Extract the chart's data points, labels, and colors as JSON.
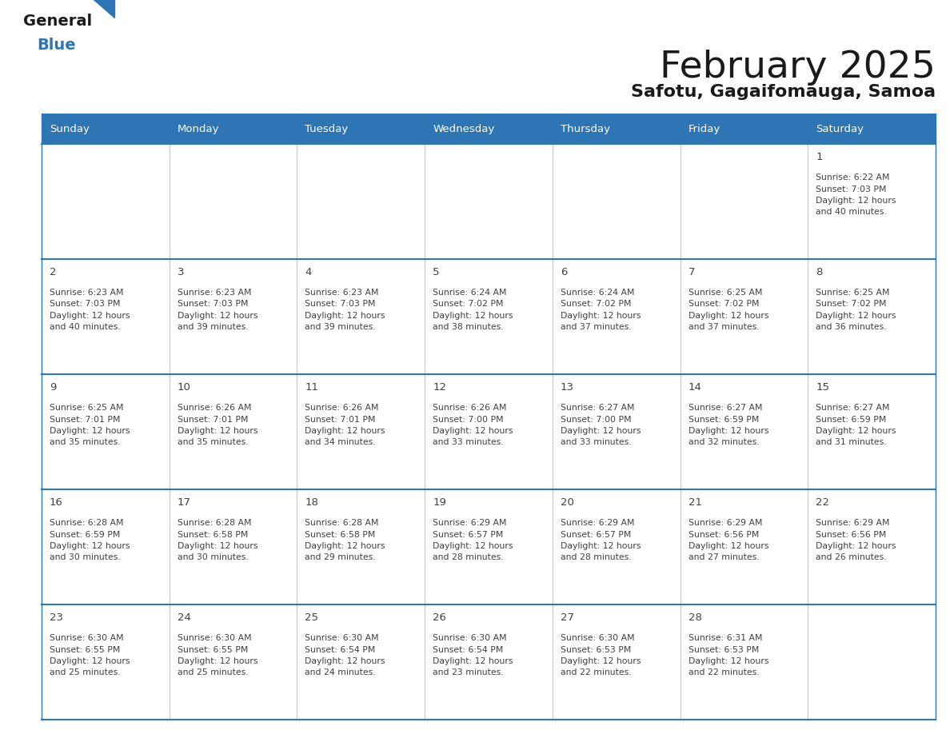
{
  "title": "February 2025",
  "subtitle": "Safotu, Gagaifomauga, Samoa",
  "header_bg": "#2E75B6",
  "header_text": "#FFFFFF",
  "grid_line_color": "#2E75B6",
  "text_color": "#404040",
  "day_headers": [
    "Sunday",
    "Monday",
    "Tuesday",
    "Wednesday",
    "Thursday",
    "Friday",
    "Saturday"
  ],
  "calendar_data": [
    [
      null,
      null,
      null,
      null,
      null,
      null,
      {
        "day": "1",
        "sunrise": "6:22 AM",
        "sunset": "7:03 PM",
        "daylight1": "12 hours",
        "daylight2": "and 40 minutes."
      }
    ],
    [
      {
        "day": "2",
        "sunrise": "6:23 AM",
        "sunset": "7:03 PM",
        "daylight1": "12 hours",
        "daylight2": "and 40 minutes."
      },
      {
        "day": "3",
        "sunrise": "6:23 AM",
        "sunset": "7:03 PM",
        "daylight1": "12 hours",
        "daylight2": "and 39 minutes."
      },
      {
        "day": "4",
        "sunrise": "6:23 AM",
        "sunset": "7:03 PM",
        "daylight1": "12 hours",
        "daylight2": "and 39 minutes."
      },
      {
        "day": "5",
        "sunrise": "6:24 AM",
        "sunset": "7:02 PM",
        "daylight1": "12 hours",
        "daylight2": "and 38 minutes."
      },
      {
        "day": "6",
        "sunrise": "6:24 AM",
        "sunset": "7:02 PM",
        "daylight1": "12 hours",
        "daylight2": "and 37 minutes."
      },
      {
        "day": "7",
        "sunrise": "6:25 AM",
        "sunset": "7:02 PM",
        "daylight1": "12 hours",
        "daylight2": "and 37 minutes."
      },
      {
        "day": "8",
        "sunrise": "6:25 AM",
        "sunset": "7:02 PM",
        "daylight1": "12 hours",
        "daylight2": "and 36 minutes."
      }
    ],
    [
      {
        "day": "9",
        "sunrise": "6:25 AM",
        "sunset": "7:01 PM",
        "daylight1": "12 hours",
        "daylight2": "and 35 minutes."
      },
      {
        "day": "10",
        "sunrise": "6:26 AM",
        "sunset": "7:01 PM",
        "daylight1": "12 hours",
        "daylight2": "and 35 minutes."
      },
      {
        "day": "11",
        "sunrise": "6:26 AM",
        "sunset": "7:01 PM",
        "daylight1": "12 hours",
        "daylight2": "and 34 minutes."
      },
      {
        "day": "12",
        "sunrise": "6:26 AM",
        "sunset": "7:00 PM",
        "daylight1": "12 hours",
        "daylight2": "and 33 minutes."
      },
      {
        "day": "13",
        "sunrise": "6:27 AM",
        "sunset": "7:00 PM",
        "daylight1": "12 hours",
        "daylight2": "and 33 minutes."
      },
      {
        "day": "14",
        "sunrise": "6:27 AM",
        "sunset": "6:59 PM",
        "daylight1": "12 hours",
        "daylight2": "and 32 minutes."
      },
      {
        "day": "15",
        "sunrise": "6:27 AM",
        "sunset": "6:59 PM",
        "daylight1": "12 hours",
        "daylight2": "and 31 minutes."
      }
    ],
    [
      {
        "day": "16",
        "sunrise": "6:28 AM",
        "sunset": "6:59 PM",
        "daylight1": "12 hours",
        "daylight2": "and 30 minutes."
      },
      {
        "day": "17",
        "sunrise": "6:28 AM",
        "sunset": "6:58 PM",
        "daylight1": "12 hours",
        "daylight2": "and 30 minutes."
      },
      {
        "day": "18",
        "sunrise": "6:28 AM",
        "sunset": "6:58 PM",
        "daylight1": "12 hours",
        "daylight2": "and 29 minutes."
      },
      {
        "day": "19",
        "sunrise": "6:29 AM",
        "sunset": "6:57 PM",
        "daylight1": "12 hours",
        "daylight2": "and 28 minutes."
      },
      {
        "day": "20",
        "sunrise": "6:29 AM",
        "sunset": "6:57 PM",
        "daylight1": "12 hours",
        "daylight2": "and 28 minutes."
      },
      {
        "day": "21",
        "sunrise": "6:29 AM",
        "sunset": "6:56 PM",
        "daylight1": "12 hours",
        "daylight2": "and 27 minutes."
      },
      {
        "day": "22",
        "sunrise": "6:29 AM",
        "sunset": "6:56 PM",
        "daylight1": "12 hours",
        "daylight2": "and 26 minutes."
      }
    ],
    [
      {
        "day": "23",
        "sunrise": "6:30 AM",
        "sunset": "6:55 PM",
        "daylight1": "12 hours",
        "daylight2": "and 25 minutes."
      },
      {
        "day": "24",
        "sunrise": "6:30 AM",
        "sunset": "6:55 PM",
        "daylight1": "12 hours",
        "daylight2": "and 25 minutes."
      },
      {
        "day": "25",
        "sunrise": "6:30 AM",
        "sunset": "6:54 PM",
        "daylight1": "12 hours",
        "daylight2": "and 24 minutes."
      },
      {
        "day": "26",
        "sunrise": "6:30 AM",
        "sunset": "6:54 PM",
        "daylight1": "12 hours",
        "daylight2": "and 23 minutes."
      },
      {
        "day": "27",
        "sunrise": "6:30 AM",
        "sunset": "6:53 PM",
        "daylight1": "12 hours",
        "daylight2": "and 22 minutes."
      },
      {
        "day": "28",
        "sunrise": "6:31 AM",
        "sunset": "6:53 PM",
        "daylight1": "12 hours",
        "daylight2": "and 22 minutes."
      },
      null
    ]
  ],
  "fig_width": 11.88,
  "fig_height": 9.18,
  "dpi": 100
}
